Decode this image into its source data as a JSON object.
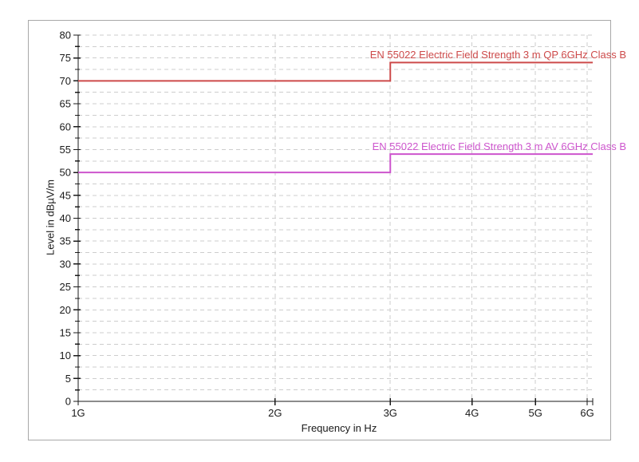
{
  "chart_data": {
    "type": "line",
    "subtype": "step-limit-lines",
    "x_scale": "log",
    "xlabel": "Frequency in Hz",
    "ylabel": "Level in dBµV/m",
    "ylim": [
      0,
      80
    ],
    "y_major_step": 5,
    "y_minor_step": 2.5,
    "grid": true,
    "grid_color": "#cdcdcd",
    "axis_color": "#1a1a1a",
    "text_color": "#1a1a1a",
    "legend_position": "labels-above-lines-right",
    "x_ticks": [
      {
        "value": 1000000000,
        "label": "1G"
      },
      {
        "value": 2000000000,
        "label": "2G"
      },
      {
        "value": 3000000000,
        "label": "3G"
      },
      {
        "value": 4000000000,
        "label": "4G"
      },
      {
        "value": 5000000000,
        "label": "5G"
      },
      {
        "value": 6000000000,
        "label": "6G"
      }
    ],
    "series": [
      {
        "name": "EN 55022 Electric Field Strength 3 m QP 6GHz Class B",
        "color": "#cd4a4a",
        "points": [
          [
            1000000000,
            70
          ],
          [
            3000000000,
            70
          ],
          [
            3000000000,
            74
          ],
          [
            6000000000,
            74
          ]
        ]
      },
      {
        "name": "EN 55022 Electric Field Strength 3 m AV 6GHz Class B",
        "color": "#cd55cd",
        "points": [
          [
            1000000000,
            50
          ],
          [
            3000000000,
            50
          ],
          [
            3000000000,
            54
          ],
          [
            6000000000,
            54
          ]
        ]
      }
    ]
  }
}
